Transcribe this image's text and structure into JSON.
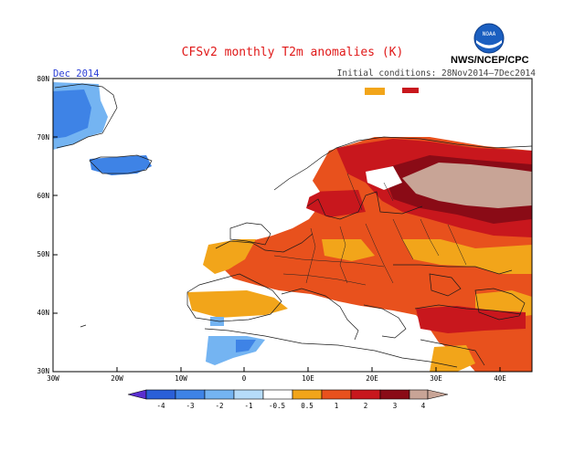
{
  "title": "CFSv2 monthly T2m anomalies (K)",
  "period": "Dec 2014",
  "initial_conditions": "Initial conditions: 28Nov2014–7Dec2014",
  "agency": "NWS/NCEP/CPC",
  "logo_text": "NOAA",
  "map": {
    "lon_range": [
      -30,
      45
    ],
    "lat_range": [
      30,
      80
    ],
    "lon_ticks": [
      "30W",
      "20W",
      "10W",
      "0",
      "10E",
      "20E",
      "30E",
      "40E"
    ],
    "lat_ticks": [
      "30N",
      "40N",
      "50N",
      "60N",
      "70N",
      "80N"
    ]
  },
  "colorbar": {
    "labels": [
      "-4",
      "-3",
      "-2",
      "-1",
      "-0.5",
      "0.5",
      "1",
      "2",
      "3",
      "4"
    ],
    "colors": [
      "#5a2fd0",
      "#2a5fd8",
      "#3e83e6",
      "#74b4f2",
      "#b6dcfa",
      "#ffffff",
      "#f2a51a",
      "#e8511d",
      "#c8171d",
      "#8a0b16",
      "#c8a496"
    ]
  }
}
